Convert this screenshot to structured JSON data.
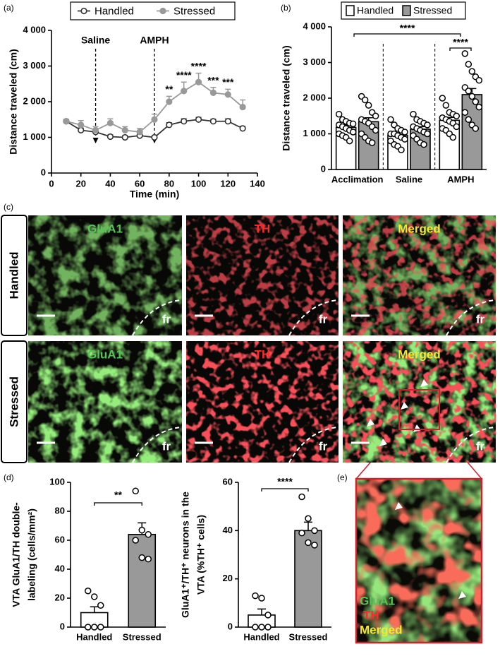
{
  "panels": [
    "(a)",
    "(b)",
    "(c)",
    "(d)",
    "(e)"
  ],
  "micrographs": {
    "rows": [
      "Handled",
      "Stressed"
    ],
    "columns": [
      "GluA1",
      "TH",
      "Merged"
    ],
    "region": "fr"
  },
  "inset": {
    "labels": [
      "GluA1",
      "TH",
      "Merged"
    ]
  },
  "chart_data": [
    {
      "type": "line",
      "xlabel": "Time (min)",
      "ylabel": "Distance traveled (cm)",
      "legend": "top",
      "x": [
        10,
        20,
        30,
        40,
        50,
        60,
        70,
        80,
        90,
        100,
        110,
        120,
        130
      ],
      "series": [
        {
          "name": "Handled",
          "color": "#333333",
          "marker": "open",
          "values": [
            1450,
            1200,
            1150,
            1020,
            1000,
            1050,
            1000,
            1350,
            1450,
            1500,
            1450,
            1450,
            1250
          ],
          "errors": [
            50,
            60,
            60,
            50,
            50,
            60,
            50,
            60,
            70,
            60,
            60,
            70,
            60
          ]
        },
        {
          "name": "Stressed",
          "color": "#999999",
          "marker": "filled",
          "values": [
            1450,
            1350,
            1200,
            1400,
            1200,
            1150,
            1500,
            2000,
            2300,
            2550,
            2250,
            2200,
            1850
          ],
          "errors": [
            60,
            120,
            100,
            120,
            100,
            100,
            150,
            150,
            250,
            250,
            150,
            150,
            200
          ]
        }
      ],
      "xlim": [
        0,
        140
      ],
      "xticks": [
        0,
        20,
        40,
        60,
        80,
        100,
        120,
        140
      ],
      "ylim": [
        0,
        4000
      ],
      "yticks": [
        0,
        {
          "value": 1000,
          "label": "1 000"
        },
        {
          "value": 2000,
          "label": "2 000"
        },
        {
          "value": 3000,
          "label": "3 000"
        },
        {
          "value": 4000,
          "label": "4 000"
        }
      ],
      "annotations": [
        {
          "text": "Saline",
          "x": 30
        },
        {
          "text": "AMPH",
          "x": 70
        }
      ],
      "significance": [
        {
          "text": "**",
          "x": 80
        },
        {
          "text": "****",
          "x": 90
        },
        {
          "text": "****",
          "x": 100
        },
        {
          "text": "***",
          "x": 110
        },
        {
          "text": "***",
          "x": 120
        }
      ]
    },
    {
      "type": "bar",
      "ylabel": "Distance traveled (cm)",
      "legend": "top",
      "categories": [
        "Acclimation",
        "Saline",
        "AMPH"
      ],
      "series": [
        {
          "name": "Handled",
          "color": "#ffffff",
          "values": [
            1180,
            960,
            1380
          ],
          "errors": [
            70,
            70,
            80
          ],
          "points": [
            [
              1550,
              1400,
              1350,
              1300,
              1280,
              1250,
              1200,
              1150,
              1100,
              1050,
              1000,
              950,
              900,
              800
            ],
            [
              1400,
              1250,
              1150,
              1100,
              1050,
              1000,
              1000,
              950,
              900,
              850,
              800,
              700,
              650,
              550
            ],
            [
              2000,
              1800,
              1600,
              1550,
              1500,
              1450,
              1400,
              1350,
              1300,
              1200,
              1150,
              1100,
              1000,
              900
            ]
          ]
        },
        {
          "name": "Stressed",
          "color": "#999999",
          "values": [
            1340,
            1130,
            2100
          ],
          "errors": [
            110,
            70,
            170
          ],
          "points": [
            [
              2050,
              1950,
              1800,
              1600,
              1500,
              1400,
              1350,
              1300,
              1200,
              1100,
              1000,
              900,
              800,
              750
            ],
            [
              1550,
              1400,
              1350,
              1300,
              1250,
              1200,
              1150,
              1100,
              1050,
              1000,
              950,
              850,
              750,
              700
            ],
            [
              3250,
              2950,
              2750,
              2600,
              2500,
              2300,
              2200,
              2050,
              1900,
              1750,
              1600,
              1400,
              1250,
              1150
            ]
          ]
        }
      ],
      "ylim": [
        0,
        4000
      ],
      "yticks": [
        0,
        {
          "value": 1000,
          "label": "1 000"
        },
        {
          "value": 2000,
          "label": "2 000"
        },
        {
          "value": 3000,
          "label": "3 000"
        },
        {
          "value": 4000,
          "label": "4 000"
        }
      ],
      "significance": [
        "****",
        "****"
      ]
    },
    {
      "type": "bar",
      "ylabel": [
        "VTA GluA1/TH double-",
        "labeling (cells/mm²)"
      ],
      "categories": [
        "Handled",
        "Stressed"
      ],
      "values": [
        10,
        64
      ],
      "errors": [
        4,
        8
      ],
      "colors": [
        "#ffffff",
        "#999999"
      ],
      "points": [
        [
          25,
          21,
          15,
          0,
          0,
          0
        ],
        [
          94,
          67,
          64,
          60,
          48,
          47
        ]
      ],
      "ylim": [
        0,
        100
      ],
      "yticks": [
        0,
        20,
        40,
        60,
        80,
        100
      ],
      "significance": [
        "**"
      ]
    },
    {
      "type": "bar",
      "ylabel": [
        "GluA1⁺/TH⁺ neurons in the",
        "VTA (%TH⁺ cells)"
      ],
      "categories": [
        "Handled",
        "Stressed"
      ],
      "values": [
        5,
        40
      ],
      "errors": [
        2.5,
        3.5
      ],
      "colors": [
        "#ffffff",
        "#999999"
      ],
      "points": [
        [
          13,
          12,
          5,
          0,
          0,
          0
        ],
        [
          54,
          45,
          40,
          39,
          35,
          34
        ]
      ],
      "ylim": [
        0,
        60
      ],
      "yticks": [
        0,
        20,
        40,
        60
      ],
      "significance": [
        "****"
      ]
    }
  ]
}
